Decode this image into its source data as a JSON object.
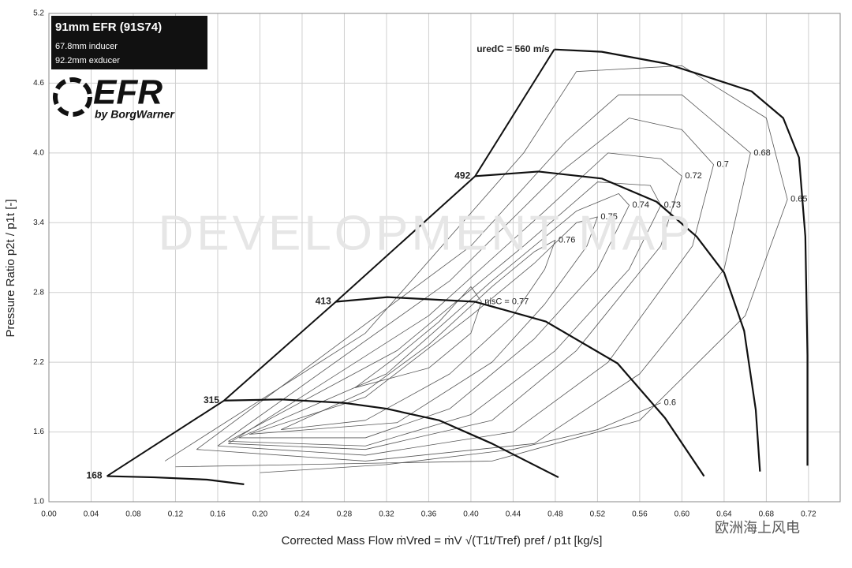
{
  "chart_data": {
    "type": "compressor-map",
    "header": {
      "title": "91mm EFR  (91S74)",
      "inducer": "67.8mm inducer",
      "exducer": "92.2mm exducer",
      "logo": "EFR",
      "brand": "by BorgWarner"
    },
    "watermark": "DEVELOPMENT MAP",
    "source_mark": "欧洲海上风电",
    "x_label": "Corrected Mass Flow   ṁVred = ṁV √(T1t/Tref) pref / p1t   [kg/s]",
    "y_label": "Pressure Ratio   p2t / p1t [-]",
    "xlim": [
      0,
      0.75
    ],
    "ylim": [
      1.0,
      5.2
    ],
    "xticks": [
      {
        "value": 0,
        "label": "0.00"
      },
      0.04,
      0.08,
      0.12,
      0.16,
      {
        "value": 0.2,
        "label": "0.20"
      },
      0.24,
      0.28,
      0.32,
      0.36,
      {
        "value": 0.4,
        "label": "0.40"
      },
      0.44,
      0.48,
      0.52,
      0.56,
      {
        "value": 0.6,
        "label": "0.60"
      },
      0.64,
      0.68,
      0.72
    ],
    "yticks": [
      {
        "value": 1,
        "label": "1.0"
      },
      1.6,
      2.2,
      2.8,
      3.4,
      {
        "value": 4,
        "label": "4.0"
      },
      4.6,
      5.2
    ],
    "grid": true,
    "speed_lines": [
      {
        "name": "168",
        "x": [
          0.055,
          0.1,
          0.15,
          0.185
        ],
        "values": [
          1.22,
          1.21,
          1.19,
          1.15
        ]
      },
      {
        "name": "315",
        "x": [
          0.166,
          0.22,
          0.28,
          0.32,
          0.37,
          0.42,
          0.483
        ],
        "values": [
          1.87,
          1.88,
          1.85,
          1.8,
          1.7,
          1.5,
          1.21
        ]
      },
      {
        "name": "413",
        "x": [
          0.272,
          0.321,
          0.404,
          0.471,
          0.539,
          0.584,
          0.621
        ],
        "values": [
          2.72,
          2.76,
          2.72,
          2.55,
          2.19,
          1.72,
          1.22
        ]
      },
      {
        "name": "492",
        "x": [
          0.404,
          0.464,
          0.524,
          0.576,
          0.614,
          0.64,
          0.659,
          0.67,
          0.674
        ],
        "values": [
          3.8,
          3.84,
          3.78,
          3.58,
          3.28,
          2.97,
          2.47,
          1.79,
          1.26
        ]
      },
      {
        "name": "uredC = 560 m/s",
        "x": [
          0.479,
          0.524,
          0.584,
          0.629,
          0.666,
          0.696,
          0.711,
          0.717,
          0.719,
          0.719
        ],
        "values": [
          4.89,
          4.87,
          4.77,
          4.64,
          4.53,
          4.3,
          3.96,
          3.28,
          2.26,
          1.31
        ]
      }
    ],
    "surge_line": {
      "x": [
        0.055,
        0.166,
        0.272,
        0.404,
        0.479
      ],
      "values": [
        1.22,
        1.87,
        2.72,
        3.8,
        4.89
      ]
    },
    "efficiency_contours": [
      {
        "name": "ηisC = 0.77",
        "x": [
          0.29,
          0.33,
          0.37,
          0.4,
          0.41,
          0.4,
          0.36,
          0.29
        ],
        "values": [
          1.98,
          2.25,
          2.55,
          2.85,
          2.72,
          2.45,
          2.15,
          1.98
        ]
      },
      {
        "name": "0.76",
        "x": [
          0.22,
          0.3,
          0.36,
          0.42,
          0.46,
          0.48,
          0.47,
          0.44,
          0.38,
          0.3,
          0.22
        ],
        "values": [
          1.62,
          1.95,
          2.35,
          2.85,
          3.15,
          3.25,
          3.0,
          2.6,
          2.1,
          1.7,
          1.62
        ]
      },
      {
        "name": "0.75",
        "x": [
          0.19,
          0.3,
          0.4,
          0.46,
          0.5,
          0.52,
          0.51,
          0.47,
          0.42,
          0.33,
          0.19
        ],
        "values": [
          1.58,
          1.9,
          2.6,
          3.05,
          3.4,
          3.45,
          3.2,
          2.7,
          2.2,
          1.68,
          1.58
        ]
      },
      {
        "name": "0.74",
        "x": [
          0.18,
          0.32,
          0.42,
          0.5,
          0.54,
          0.55,
          0.52,
          0.46,
          0.38,
          0.3,
          0.18
        ],
        "values": [
          1.55,
          2.1,
          2.9,
          3.5,
          3.65,
          3.55,
          3.0,
          2.4,
          1.8,
          1.55,
          1.55
        ]
      },
      {
        "name": "0.73",
        "x": [
          0.17,
          0.33,
          0.45,
          0.52,
          0.57,
          0.58,
          0.55,
          0.48,
          0.4,
          0.3,
          0.17
        ],
        "values": [
          1.52,
          2.3,
          3.2,
          3.75,
          3.72,
          3.55,
          3.0,
          2.3,
          1.75,
          1.48,
          1.52
        ]
      },
      {
        "name": "0.72",
        "x": [
          0.17,
          0.36,
          0.47,
          0.53,
          0.58,
          0.6,
          0.58,
          0.5,
          0.42,
          0.3,
          0.17
        ],
        "values": [
          1.5,
          2.6,
          3.5,
          4.0,
          3.95,
          3.8,
          3.2,
          2.3,
          1.7,
          1.45,
          1.5
        ]
      },
      {
        "name": "0.7",
        "x": [
          0.16,
          0.38,
          0.48,
          0.55,
          0.6,
          0.63,
          0.61,
          0.53,
          0.44,
          0.3,
          0.16
        ],
        "values": [
          1.48,
          2.9,
          3.8,
          4.3,
          4.2,
          3.9,
          3.2,
          2.2,
          1.6,
          1.4,
          1.48
        ]
      },
      {
        "name": "0.68",
        "x": [
          0.14,
          0.4,
          0.49,
          0.54,
          0.6,
          0.665,
          0.64,
          0.56,
          0.46,
          0.3,
          0.14
        ],
        "values": [
          1.45,
          3.2,
          4.1,
          4.5,
          4.5,
          4.0,
          3.0,
          2.1,
          1.5,
          1.35,
          1.45
        ]
      },
      {
        "name": "0.65",
        "x": [
          0.11,
          0.3,
          0.45,
          0.5,
          0.6,
          0.68,
          0.7,
          0.66,
          0.56,
          0.42,
          0.12
        ],
        "values": [
          1.35,
          2.45,
          4.0,
          4.7,
          4.75,
          4.3,
          3.6,
          2.6,
          1.7,
          1.35,
          1.3
        ]
      },
      {
        "name": "0.6",
        "x": [
          0.2,
          0.32,
          0.44,
          0.52,
          0.58
        ],
        "values": [
          1.25,
          1.32,
          1.45,
          1.62,
          1.85
        ]
      }
    ]
  }
}
